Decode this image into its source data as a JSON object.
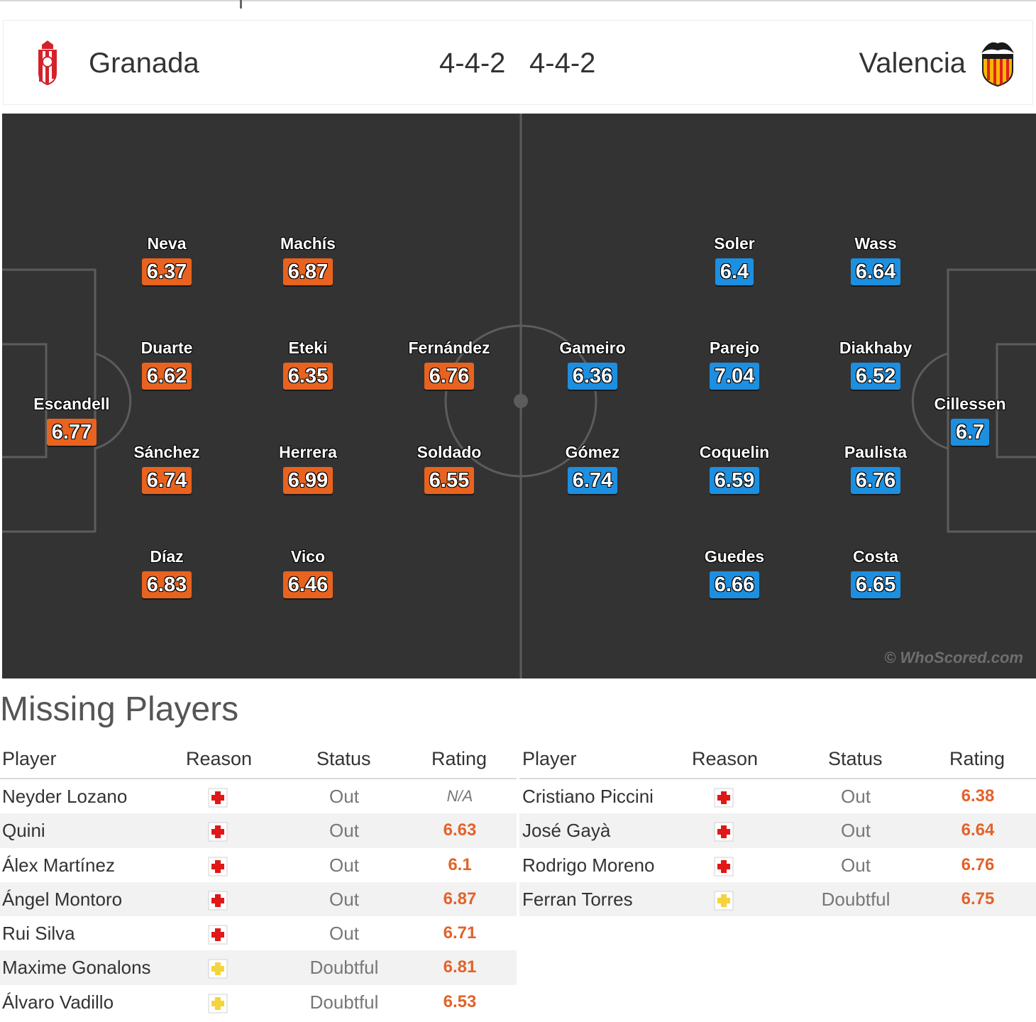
{
  "header": {
    "home_team": "Granada",
    "away_team": "Valencia",
    "home_formation": "4-4-2",
    "away_formation": "4-4-2",
    "home_crest_icon": "granada-crest-icon",
    "away_crest_icon": "valencia-crest-icon"
  },
  "colors": {
    "home_rating": "#e8631f",
    "away_rating": "#1d8fe0",
    "pitch": "#333333",
    "pitch_lines": "#5c5c5c",
    "missing_rating": "#e2632a"
  },
  "pitch": {
    "watermark": "© WhoScored.com",
    "home_players": [
      {
        "name": "Escandell",
        "rating": "6.77"
      },
      {
        "name": "Neva",
        "rating": "6.37"
      },
      {
        "name": "Duarte",
        "rating": "6.62"
      },
      {
        "name": "Sánchez",
        "rating": "6.74"
      },
      {
        "name": "Díaz",
        "rating": "6.83"
      },
      {
        "name": "Machís",
        "rating": "6.87"
      },
      {
        "name": "Eteki",
        "rating": "6.35"
      },
      {
        "name": "Herrera",
        "rating": "6.99"
      },
      {
        "name": "Vico",
        "rating": "6.46"
      },
      {
        "name": "Fernández",
        "rating": "6.76"
      },
      {
        "name": "Soldado",
        "rating": "6.55"
      }
    ],
    "away_players": [
      {
        "name": "Cillessen",
        "rating": "6.7"
      },
      {
        "name": "Wass",
        "rating": "6.64"
      },
      {
        "name": "Diakhaby",
        "rating": "6.52"
      },
      {
        "name": "Paulista",
        "rating": "6.76"
      },
      {
        "name": "Costa",
        "rating": "6.65"
      },
      {
        "name": "Soler",
        "rating": "6.4"
      },
      {
        "name": "Parejo",
        "rating": "7.04"
      },
      {
        "name": "Coquelin",
        "rating": "6.59"
      },
      {
        "name": "Guedes",
        "rating": "6.66"
      },
      {
        "name": "Gameiro",
        "rating": "6.36"
      },
      {
        "name": "Gómez",
        "rating": "6.74"
      }
    ]
  },
  "missing": {
    "title": "Missing Players",
    "columns": {
      "player": "Player",
      "reason": "Reason",
      "status": "Status",
      "rating": "Rating"
    },
    "home": [
      {
        "player": "Neyder Lozano",
        "reason_icon": "injury-icon",
        "status": "Out",
        "rating": "N/A"
      },
      {
        "player": "Quini",
        "reason_icon": "injury-icon",
        "status": "Out",
        "rating": "6.63"
      },
      {
        "player": "Álex Martínez",
        "reason_icon": "injury-icon",
        "status": "Out",
        "rating": "6.1"
      },
      {
        "player": "Ángel Montoro",
        "reason_icon": "injury-icon",
        "status": "Out",
        "rating": "6.87"
      },
      {
        "player": "Rui Silva",
        "reason_icon": "injury-icon",
        "status": "Out",
        "rating": "6.71"
      },
      {
        "player": "Maxime Gonalons",
        "reason_icon": "doubtful-icon",
        "status": "Doubtful",
        "rating": "6.81"
      },
      {
        "player": "Álvaro Vadillo",
        "reason_icon": "doubtful-icon",
        "status": "Doubtful",
        "rating": "6.53"
      }
    ],
    "away": [
      {
        "player": "Cristiano Piccini",
        "reason_icon": "injury-icon",
        "status": "Out",
        "rating": "6.38"
      },
      {
        "player": "José Gayà",
        "reason_icon": "injury-icon",
        "status": "Out",
        "rating": "6.64"
      },
      {
        "player": "Rodrigo Moreno",
        "reason_icon": "injury-icon",
        "status": "Out",
        "rating": "6.76"
      },
      {
        "player": "Ferran Torres",
        "reason_icon": "doubtful-icon",
        "status": "Doubtful",
        "rating": "6.75"
      }
    ]
  }
}
